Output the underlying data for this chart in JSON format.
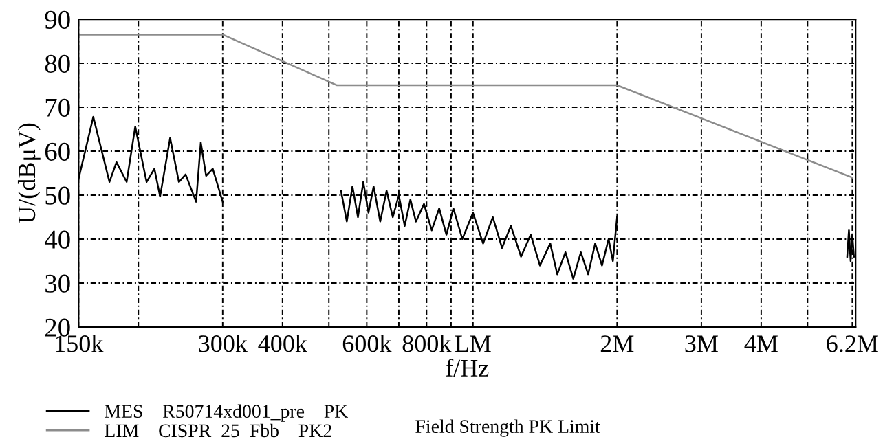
{
  "chart_data": {
    "type": "line",
    "xlabel": "f/Hz",
    "ylabel": "U/(dBμV)",
    "log": "x",
    "xlim": [
      150000,
      6300000
    ],
    "ylim": [
      20,
      90
    ],
    "xticks": [
      {
        "value": 150000,
        "label": "150k"
      },
      {
        "value": 200000,
        "label": null
      },
      {
        "value": 300000,
        "label": "300k"
      },
      {
        "value": 400000,
        "label": "400k"
      },
      {
        "value": 500000,
        "label": null
      },
      {
        "value": 600000,
        "label": "600k"
      },
      {
        "value": 700000,
        "label": null
      },
      {
        "value": 800000,
        "label": "800k"
      },
      {
        "value": 900000,
        "label": null
      },
      {
        "value": 1000000,
        "label": "LM"
      },
      {
        "value": 2000000,
        "label": "2M"
      },
      {
        "value": 3000000,
        "label": "3M"
      },
      {
        "value": 4000000,
        "label": "4M"
      },
      {
        "value": 5000000,
        "label": null
      },
      {
        "value": 6200000,
        "label": "6.2M"
      }
    ],
    "yticks": [
      20,
      30,
      40,
      50,
      60,
      70,
      80,
      90
    ],
    "grid": true,
    "legend": "bottom left",
    "line_style": "solid",
    "marker": "none",
    "series": [
      {
        "name": "MES    R50714xd001_pre    PK",
        "color": "#000000",
        "x": [
          150000,
          161000,
          174000,
          180000,
          189000,
          197000,
          208000,
          216000,
          222000,
          233000,
          243000,
          251000,
          264000,
          270000,
          277000,
          286000,
          300000,
          400000,
          530000,
          545000,
          560000,
          575000,
          590000,
          605000,
          620000,
          640000,
          660000,
          680000,
          700000,
          720000,
          740000,
          760000,
          790000,
          820000,
          850000,
          880000,
          910000,
          950000,
          1000000,
          1050000,
          1100000,
          1150000,
          1200000,
          1260000,
          1320000,
          1380000,
          1450000,
          1500000,
          1560000,
          1620000,
          1680000,
          1740000,
          1800000,
          1860000,
          1920000,
          1960000,
          2000000,
          4000000,
          6050000,
          6100000,
          6150000,
          6200000,
          6250000
        ],
        "values": [
          53.7,
          67.8,
          53,
          57.5,
          53,
          65.6,
          53,
          56,
          49.7,
          63,
          53,
          54.7,
          48.5,
          62,
          54.4,
          56,
          48.5,
          null,
          51,
          44,
          52,
          45,
          53,
          46,
          52,
          44,
          51,
          45,
          50,
          43,
          49,
          44,
          48,
          42,
          47,
          41,
          47,
          40,
          46,
          39,
          45,
          38,
          43,
          36,
          41,
          34,
          39,
          32,
          37,
          31,
          37,
          32,
          39,
          34,
          40,
          35,
          45,
          null,
          36,
          42,
          35,
          41,
          36
        ]
      },
      {
        "name": "LIM    CISPR  25  Fbb    PK2",
        "color": "#8c8c8c",
        "x": [
          150000,
          300000,
          520000,
          2000000,
          6200000
        ],
        "values": [
          86.5,
          86.5,
          75,
          75,
          54
        ]
      }
    ],
    "annotations": [
      "Field Strength PK Limit"
    ]
  }
}
